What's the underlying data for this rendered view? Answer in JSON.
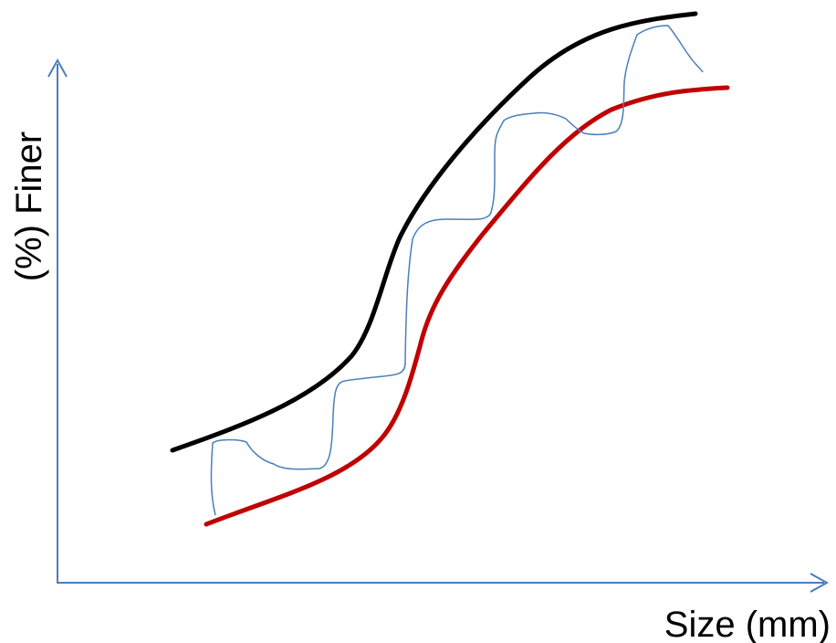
{
  "diagram": {
    "y_axis_label": "(%) Finer",
    "x_axis_label": "Size (mm)"
  },
  "colors": {
    "axis": "#4a7ebb",
    "upper_envelope": "#000000",
    "lower_envelope": "#c00000",
    "sample_curve": "#4a7ebb",
    "text": "#000000"
  }
}
